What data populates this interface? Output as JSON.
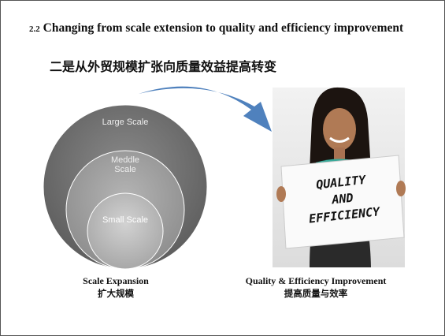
{
  "header": {
    "number": "2.2",
    "title": "Changing from scale extension to quality and efficiency improvement",
    "subtitle": "二是从外贸规模扩张向质量效益提高转变"
  },
  "circles": [
    "Large Scale",
    "Meddle Scale",
    "Small Scale"
  ],
  "image": {
    "sign_text": [
      "QUALITY",
      "AND",
      "EFFICIENCY"
    ]
  },
  "left_caption": {
    "en": "Scale Expansion",
    "zh": "扩大规模"
  },
  "right_caption": {
    "en": "Quality & Efficiency Improvement",
    "zh": "提高质量与效率"
  }
}
